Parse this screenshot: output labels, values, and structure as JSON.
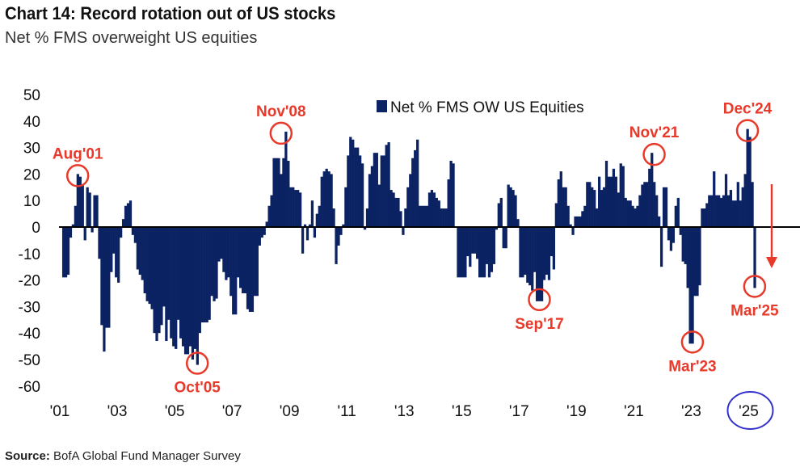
{
  "title": "Chart 14: Record rotation out of US stocks",
  "subtitle": "Net % FMS overweight US equities",
  "source_label": "Source:",
  "source_text": "BofA Global Fund Manager Survey",
  "colors": {
    "bar": "#0b2263",
    "annotation": "#e8392a",
    "highlight": "#3333cc",
    "axis": "#000000"
  },
  "chart_data": {
    "type": "bar",
    "title": "Chart 14: Record rotation out of US stocks",
    "subtitle": "Net % FMS overweight US equities",
    "xlabel": "",
    "ylabel": "",
    "ylim": [
      -60,
      50
    ],
    "yticks": [
      "50",
      "40",
      "30",
      "20",
      "10",
      "0",
      "-10",
      "-20",
      "-30",
      "-40",
      "-50",
      "-60"
    ],
    "xticks": [
      "'01",
      "'03",
      "'05",
      "'07",
      "'09",
      "'11",
      "'13",
      "'15",
      "'17",
      "'19",
      "'21",
      "'23",
      "'25"
    ],
    "legend": {
      "label": "Net % FMS OW US Equities",
      "placement": "top-center"
    },
    "grid": false,
    "frequency": "monthly",
    "start": "2001-02",
    "end": "2025-03",
    "series": [
      {
        "name": "Net % FMS OW US Equities",
        "values": [
          -19,
          -19,
          -18,
          -4,
          1,
          8,
          20,
          19,
          16,
          -5,
          15,
          13,
          -2,
          12,
          12,
          -12,
          -37,
          -47,
          -38,
          -38,
          -17,
          -10,
          -19,
          -21,
          -4,
          3,
          8,
          9,
          10,
          -3,
          -6,
          -16,
          -18,
          -20,
          -25,
          -28,
          -29,
          -31,
          -40,
          -43,
          -40,
          -37,
          -30,
          -43,
          -35,
          -42,
          -45,
          -46,
          -35,
          -42,
          -45,
          -48,
          -48,
          -45,
          -50,
          -46,
          -52,
          -40,
          -36,
          -36,
          -36,
          -35,
          -26,
          -28,
          -27,
          -13,
          -12,
          -17,
          -20,
          -19,
          -26,
          -33,
          -33,
          -19,
          -23,
          -25,
          -25,
          -31,
          -32,
          -32,
          -26,
          -26,
          -7,
          -4,
          -3,
          2,
          8,
          12,
          26,
          26,
          26,
          20,
          26,
          36,
          25,
          15,
          15,
          14,
          14,
          13,
          -10,
          1,
          -5,
          1,
          10,
          -4,
          5,
          8,
          19,
          21,
          22,
          21,
          20,
          7,
          -14,
          -7,
          -3,
          1,
          15,
          27,
          34,
          33,
          30,
          30,
          27,
          24,
          -1,
          7,
          20,
          23,
          28,
          28,
          16,
          27,
          27,
          31,
          32,
          14,
          13,
          11,
          11,
          6,
          -3,
          7,
          15,
          20,
          26,
          29,
          33,
          8,
          8,
          8,
          8,
          13,
          14,
          13,
          11,
          10,
          7,
          7,
          7,
          18,
          25,
          24,
          0,
          -19,
          -19,
          -19,
          -19,
          -11,
          -15,
          -10,
          -10,
          -12,
          -19,
          -19,
          -19,
          -14,
          -19,
          -17,
          -14,
          -1,
          9,
          11,
          -8,
          -8,
          16,
          15,
          14,
          12,
          3,
          -19,
          -19,
          -18,
          -21,
          -22,
          -24,
          -17,
          -28,
          -28,
          -28,
          -20,
          -18,
          -20,
          -11,
          -16,
          9,
          18,
          21,
          15,
          15,
          8,
          1,
          -3,
          4,
          4,
          4,
          6,
          8,
          17,
          17,
          15,
          14,
          7,
          19,
          14,
          15,
          25,
          19,
          19,
          22,
          19,
          13,
          24,
          23,
          11,
          10,
          10,
          8,
          7,
          8,
          12,
          16,
          17,
          17,
          22,
          28,
          17,
          12,
          4,
          -15,
          15,
          15,
          -5,
          -9,
          -6,
          8,
          11,
          -3,
          -13,
          -14,
          -23,
          -44,
          -44,
          -26,
          -26,
          -22,
          7,
          7,
          9,
          12,
          12,
          21,
          12,
          12,
          11,
          12,
          20,
          12,
          14,
          10,
          10,
          17,
          10,
          15,
          20,
          37,
          34,
          17,
          -23
        ]
      }
    ],
    "annotations": [
      {
        "label": "Aug'01",
        "index": 6,
        "value": 20,
        "position": "above"
      },
      {
        "label": "Oct'05",
        "index": 56,
        "value": -52,
        "position": "below"
      },
      {
        "label": "Nov'08",
        "index": 91,
        "value": 36,
        "position": "above"
      },
      {
        "label": "Sep'17",
        "index": 199,
        "value": -28,
        "position": "below"
      },
      {
        "label": "Nov'21",
        "index": 247,
        "value": 28,
        "position": "above"
      },
      {
        "label": "Mar'23",
        "index": 263,
        "value": -44,
        "position": "below"
      },
      {
        "label": "Dec'24",
        "index": 286,
        "value": 37,
        "position": "above"
      },
      {
        "label": "Mar'25",
        "index": 289,
        "value": -23,
        "position": "below"
      }
    ],
    "highlighted_tick": "'25"
  }
}
